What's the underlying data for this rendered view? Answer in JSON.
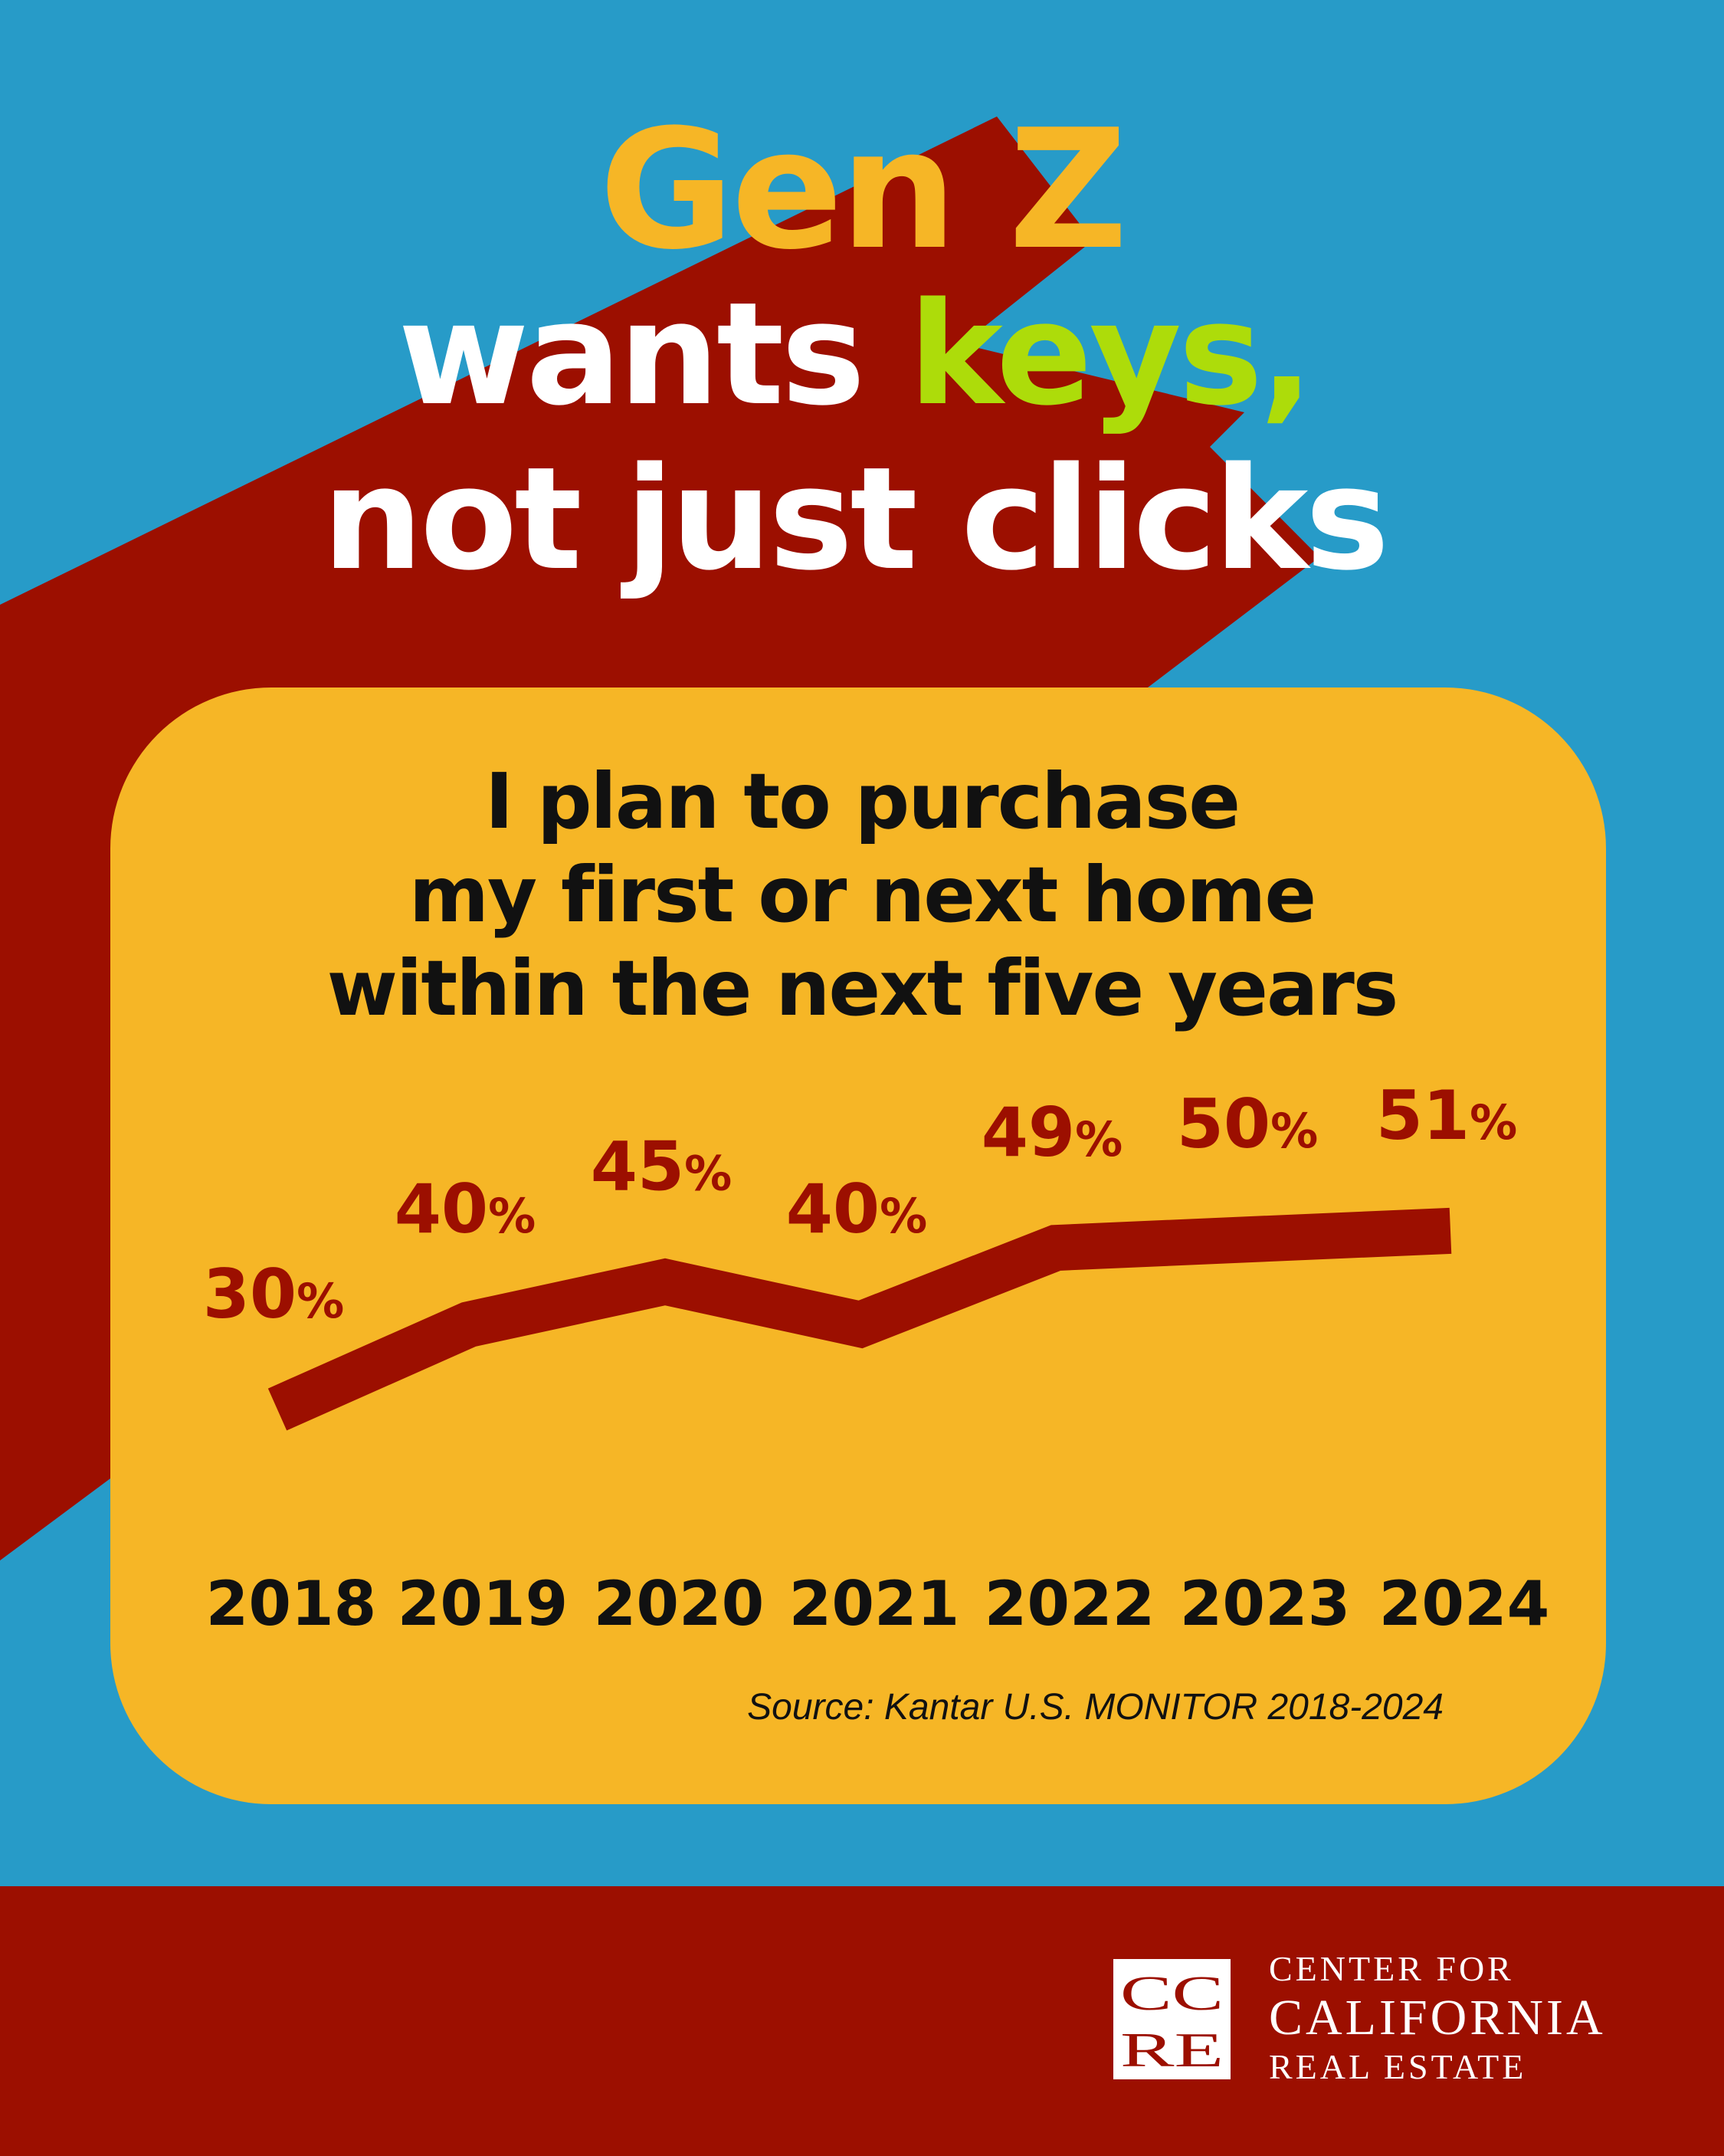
{
  "title": {
    "line1": "Gen Z",
    "line2_pre": "wants ",
    "line2_key": "keys,",
    "line3": "not just clicks"
  },
  "colors": {
    "background": "#279BC8",
    "red": "#9C0F00",
    "yellow": "#F6B626",
    "green": "#ADDC0A",
    "white": "#FFFFFF"
  },
  "chart_data": {
    "type": "line",
    "title": [
      "I plan to purchase",
      "my first or next home",
      "within the next five years"
    ],
    "categories": [
      "2018",
      "2019",
      "2020",
      "2021",
      "2022",
      "2023",
      "2024"
    ],
    "values": [
      30,
      40,
      45,
      40,
      49,
      50,
      51
    ],
    "labels": [
      "30%",
      "40%",
      "45%",
      "40%",
      "49%",
      "50%",
      "51%"
    ],
    "xlabel": "",
    "ylabel": "",
    "grid": false,
    "legend": "none"
  },
  "source": "Source: Kantar U.S. MONITOR 2018-2024",
  "logo": {
    "mark": "CCRE",
    "line1": "CENTER FOR",
    "line2": "CALIFORNIA",
    "line3": "REAL ESTATE"
  }
}
